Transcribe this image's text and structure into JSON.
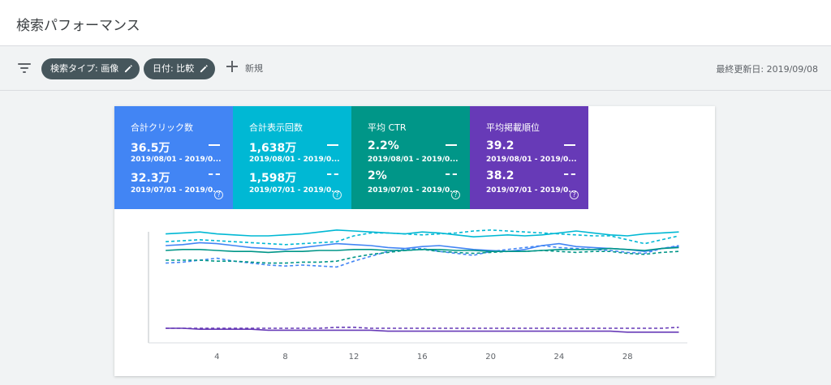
{
  "header": {
    "title": "検索パフォーマンス"
  },
  "filters": {
    "chips": [
      {
        "label": "検索タイプ: 画像"
      },
      {
        "label": "日付: 比較"
      }
    ],
    "add_label": "新規",
    "last_updated": "最終更新日: 2019/09/08"
  },
  "metrics": [
    {
      "label": "合計クリック数",
      "value_current": "36.5万",
      "range_current": "2019/08/01 - 2019/0...",
      "value_previous": "32.3万",
      "range_previous": "2019/07/01 - 2019/0...",
      "color": "#4285f4"
    },
    {
      "label": "合計表示回数",
      "value_current": "1,638万",
      "range_current": "2019/08/01 - 2019/0...",
      "value_previous": "1,598万",
      "range_previous": "2019/07/01 - 2019/0...",
      "color": "#00b8d4"
    },
    {
      "label": "平均 CTR",
      "value_current": "2.2%",
      "range_current": "2019/08/01 - 2019/0...",
      "value_previous": "2%",
      "range_previous": "2019/07/01 - 2019/0...",
      "color": "#009688"
    },
    {
      "label": "平均掲載順位",
      "value_current": "39.2",
      "range_current": "2019/08/01 - 2019/0...",
      "value_previous": "38.2",
      "range_previous": "2019/07/01 - 2019/0...",
      "color": "#673ab7"
    }
  ],
  "chart_data": {
    "type": "line",
    "x": [
      1,
      2,
      3,
      4,
      5,
      6,
      7,
      8,
      9,
      10,
      11,
      12,
      13,
      14,
      15,
      16,
      17,
      18,
      19,
      20,
      21,
      22,
      23,
      24,
      25,
      26,
      27,
      28,
      29,
      30,
      31
    ],
    "xticks": [
      4,
      8,
      12,
      16,
      20,
      24,
      28
    ],
    "xlim": [
      0,
      31.5
    ],
    "series": [
      {
        "metric": "clicks",
        "period": "current",
        "style": "solid",
        "color": "#4285f4",
        "values": [
          0.9,
          0.91,
          0.93,
          0.92,
          0.9,
          0.88,
          0.87,
          0.86,
          0.88,
          0.9,
          0.92,
          0.91,
          0.9,
          0.88,
          0.87,
          0.89,
          0.9,
          0.88,
          0.86,
          0.85,
          0.84,
          0.86,
          0.9,
          0.92,
          0.89,
          0.88,
          0.87,
          0.86,
          0.84,
          0.87,
          0.89
        ]
      },
      {
        "metric": "clicks",
        "period": "previous",
        "style": "dashed",
        "color": "#4285f4",
        "values": [
          0.72,
          0.73,
          0.75,
          0.77,
          0.74,
          0.72,
          0.7,
          0.69,
          0.7,
          0.69,
          0.68,
          0.74,
          0.79,
          0.84,
          0.86,
          0.87,
          0.84,
          0.82,
          0.8,
          0.84,
          0.86,
          0.88,
          0.9,
          0.88,
          0.87,
          0.86,
          0.85,
          0.83,
          0.82,
          0.87,
          0.9
        ]
      },
      {
        "metric": "impressions",
        "period": "current",
        "style": "solid",
        "color": "#00b8d4",
        "values": [
          1.02,
          1.03,
          1.04,
          1.02,
          1.01,
          1.0,
          1.0,
          1.01,
          1.02,
          1.04,
          1.06,
          1.05,
          1.04,
          1.03,
          1.02,
          1.04,
          1.03,
          1.01,
          0.99,
          1.0,
          1.01,
          1.0,
          1.01,
          1.03,
          1.05,
          1.03,
          1.01,
          1.0,
          1.02,
          1.03,
          1.04
        ]
      },
      {
        "metric": "impressions",
        "period": "previous",
        "style": "dashed",
        "color": "#00b8d4",
        "values": [
          0.94,
          0.95,
          0.96,
          0.95,
          0.94,
          0.93,
          0.92,
          0.91,
          0.92,
          0.93,
          0.94,
          1.0,
          1.03,
          1.03,
          1.02,
          1.01,
          1.02,
          1.03,
          1.05,
          1.06,
          1.05,
          1.04,
          1.03,
          1.02,
          1.01,
          1.0,
          1.0,
          0.96,
          0.92,
          0.96,
          1.0
        ]
      },
      {
        "metric": "ctr",
        "period": "current",
        "style": "solid",
        "color": "#009688",
        "values": [
          0.85,
          0.86,
          0.86,
          0.85,
          0.84,
          0.84,
          0.83,
          0.84,
          0.84,
          0.85,
          0.85,
          0.86,
          0.86,
          0.85,
          0.85,
          0.86,
          0.86,
          0.85,
          0.85,
          0.84,
          0.84,
          0.84,
          0.85,
          0.86,
          0.86,
          0.86,
          0.87,
          0.86,
          0.85,
          0.87,
          0.88
        ]
      },
      {
        "metric": "ctr",
        "period": "previous",
        "style": "dashed",
        "color": "#009688",
        "values": [
          0.75,
          0.75,
          0.75,
          0.74,
          0.74,
          0.73,
          0.72,
          0.72,
          0.73,
          0.73,
          0.74,
          0.78,
          0.81,
          0.83,
          0.85,
          0.86,
          0.84,
          0.83,
          0.82,
          0.83,
          0.84,
          0.84,
          0.85,
          0.84,
          0.83,
          0.84,
          0.84,
          0.82,
          0.81,
          0.83,
          0.84
        ]
      },
      {
        "metric": "position",
        "period": "current",
        "style": "solid",
        "color": "#673ab7",
        "values": [
          0.05,
          0.05,
          0.04,
          0.04,
          0.04,
          0.04,
          0.03,
          0.03,
          0.03,
          0.03,
          0.03,
          0.03,
          0.03,
          0.02,
          0.02,
          0.02,
          0.02,
          0.02,
          0.02,
          0.02,
          0.02,
          0.02,
          0.02,
          0.02,
          0.02,
          0.02,
          0.02,
          0.01,
          0.01,
          0.01,
          0.01
        ]
      },
      {
        "metric": "position",
        "period": "previous",
        "style": "dashed",
        "color": "#673ab7",
        "values": [
          0.05,
          0.05,
          0.05,
          0.05,
          0.05,
          0.05,
          0.05,
          0.05,
          0.05,
          0.05,
          0.06,
          0.06,
          0.05,
          0.05,
          0.05,
          0.05,
          0.05,
          0.05,
          0.05,
          0.05,
          0.05,
          0.05,
          0.05,
          0.05,
          0.05,
          0.05,
          0.05,
          0.05,
          0.05,
          0.05,
          0.06
        ]
      }
    ]
  }
}
